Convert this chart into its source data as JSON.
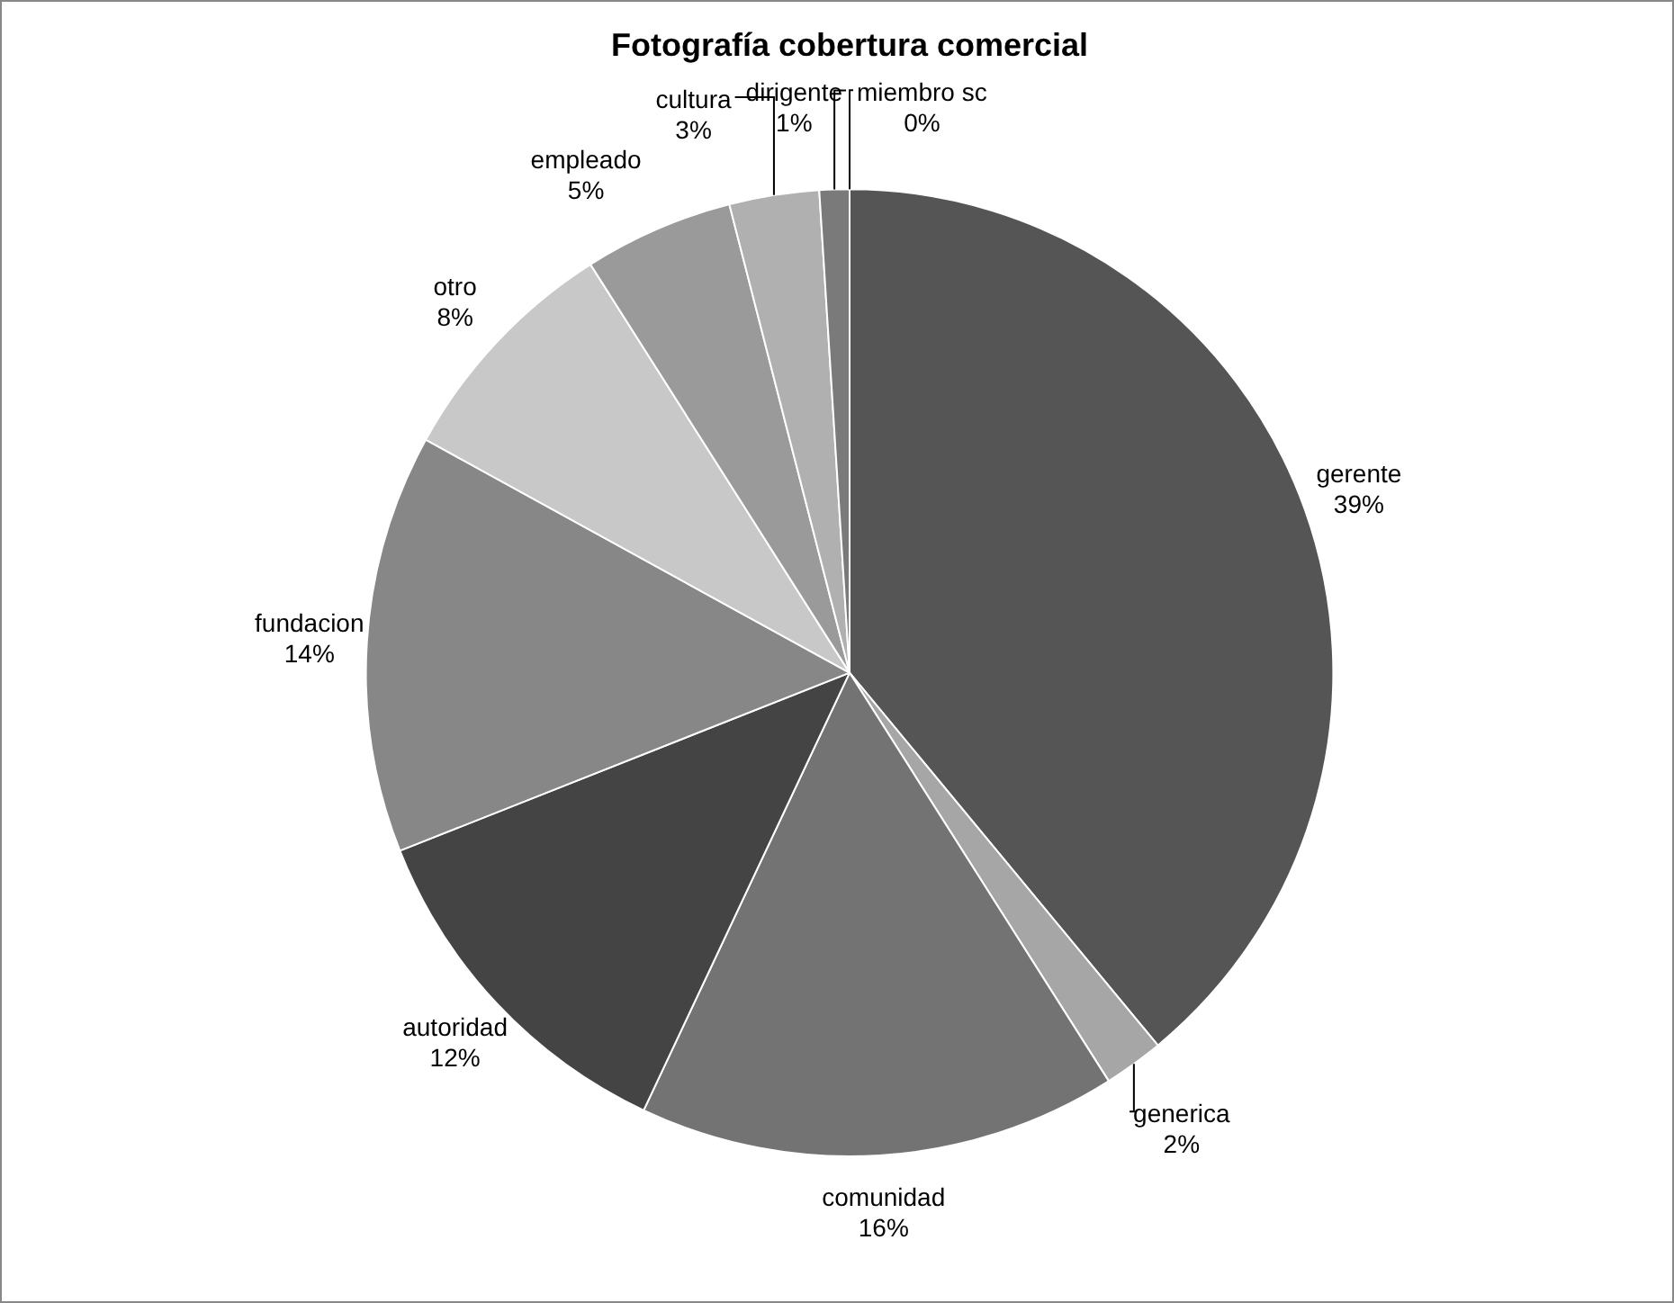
{
  "chart_data": {
    "type": "pie",
    "title": "Fotografía cobertura comercial",
    "categories": [
      "gerente",
      "generica",
      "comunidad",
      "autoridad",
      "fundacion",
      "otro",
      "empleado",
      "cultura",
      "dirigente",
      "miembro sc"
    ],
    "values": [
      39,
      2,
      16,
      12,
      14,
      8,
      5,
      3,
      1,
      0
    ],
    "colors": [
      "#555555",
      "#a6a6a6",
      "#737373",
      "#444444",
      "#878787",
      "#c8c8c8",
      "#9a9a9a",
      "#b0b0b0",
      "#7a7a7a",
      "#c0c0c0"
    ],
    "value_labels": [
      "39%",
      "2%",
      "16%",
      "12%",
      "14%",
      "8%",
      "5%",
      "3%",
      "1%",
      "0%"
    ],
    "legend": false
  }
}
